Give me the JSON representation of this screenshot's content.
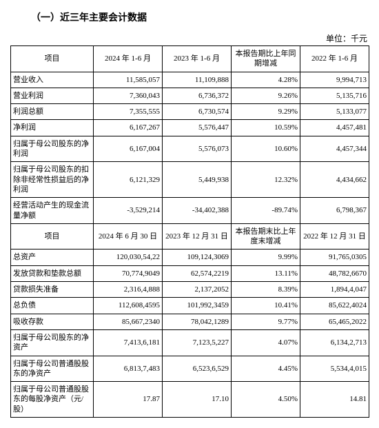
{
  "title": "（一）近三年主要会计数据",
  "unit": "单位：千元",
  "headers1": {
    "item": "项目",
    "c1": "2024 年 1-6 月",
    "c2": "2023 年 1-6 月",
    "c3": "本报告期比上年同期增减",
    "c4": "2022 年 1-6 月"
  },
  "rows1": [
    {
      "label": "营业收入",
      "v1": "11,585,057",
      "v2": "11,109,888",
      "v3": "4.28%",
      "v4": "9,994,713"
    },
    {
      "label": "营业利润",
      "v1": "7,360,043",
      "v2": "6,736,372",
      "v3": "9.26%",
      "v4": "5,135,716"
    },
    {
      "label": "利润总额",
      "v1": "7,355,555",
      "v2": "6,730,574",
      "v3": "9.29%",
      "v4": "5,133,077"
    },
    {
      "label": "净利润",
      "v1": "6,167,267",
      "v2": "5,576,447",
      "v3": "10.59%",
      "v4": "4,457,481"
    },
    {
      "label": "归属于母公司股东的净利润",
      "v1": "6,167,004",
      "v2": "5,576,073",
      "v3": "10.60%",
      "v4": "4,457,344"
    },
    {
      "label": "归属于母公司股东的扣除非经常性损益后的净利润",
      "v1": "6,121,329",
      "v2": "5,449,938",
      "v3": "12.32%",
      "v4": "4,434,662"
    },
    {
      "label": "经营活动产生的现金流量净额",
      "v1": "-3,529,214",
      "v2": "-34,402,388",
      "v3": "-89.74%",
      "v4": "6,798,367"
    }
  ],
  "headers2": {
    "item": "项目",
    "c1": "2024 年 6 月 30 日",
    "c2": "2023 年 12 月 31 日",
    "c3": "本报告期末比上年度末增减",
    "c4": "2022 年 12 月 31 日"
  },
  "rows2": [
    {
      "label": "总资产",
      "v1": "120,030,54,22",
      "v2": "109,124,3069",
      "v3": "9.99%",
      "v4": "91,765,0305"
    },
    {
      "label": "发放贷款和垫款总额",
      "v1": "70,774,9049",
      "v2": "62,574,2219",
      "v3": "13.11%",
      "v4": "48,782,6670"
    },
    {
      "label": "贷款损失准备",
      "v1": "2,316,4,888",
      "v2": "2,137,2052",
      "v3": "8.39%",
      "v4": "1,894,4,047"
    },
    {
      "label": "总负债",
      "v1": "112,608,4595",
      "v2": "101,992,3459",
      "v3": "10.41%",
      "v4": "85,622,4024"
    },
    {
      "label": "吸收存款",
      "v1": "85,667,2340",
      "v2": "78,042,1289",
      "v3": "9.77%",
      "v4": "65,465,2022"
    },
    {
      "label": "归属于母公司股东的净资产",
      "v1": "7,413,6,181",
      "v2": "7,123,5,227",
      "v3": "4.07%",
      "v4": "6,134,2,713"
    },
    {
      "label": "归属于母公司普通股股东的净资产",
      "v1": "6,813,7,483",
      "v2": "6,523,6,529",
      "v3": "4.45%",
      "v4": "5,534,4,015"
    },
    {
      "label": "归属于母公司普通股股东的每股净资产（元/股）",
      "v1": "17.87",
      "v2": "17.10",
      "v3": "4.50%",
      "v4": "14.81"
    }
  ]
}
